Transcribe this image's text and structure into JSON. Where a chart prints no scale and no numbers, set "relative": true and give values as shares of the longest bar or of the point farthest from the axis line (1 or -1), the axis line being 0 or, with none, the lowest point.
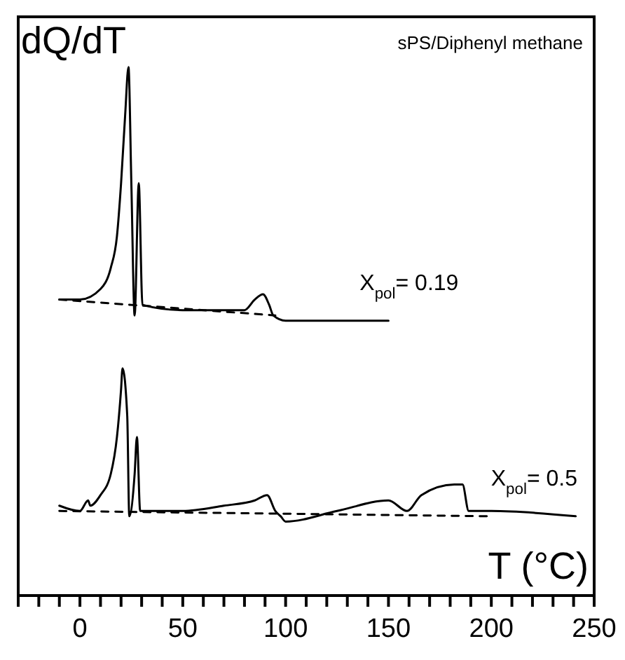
{
  "chart_data": {
    "type": "line",
    "relative": true,
    "ylabel": "dQ/dT",
    "xlabel": "T (°C)",
    "annotations": [
      "sPS/Diphenyl methane"
    ],
    "xlim": [
      -30,
      250
    ],
    "xticks": [
      {
        "value": -30,
        "label": null
      },
      {
        "value": -20,
        "label": null
      },
      {
        "value": -10,
        "label": null
      },
      0,
      {
        "value": 10,
        "label": null
      },
      {
        "value": 20,
        "label": null
      },
      {
        "value": 30,
        "label": null
      },
      {
        "value": 40,
        "label": null
      },
      50,
      {
        "value": 60,
        "label": null
      },
      {
        "value": 70,
        "label": null
      },
      {
        "value": 80,
        "label": null
      },
      {
        "value": 90,
        "label": null
      },
      100,
      {
        "value": 110,
        "label": null
      },
      {
        "value": 120,
        "label": null
      },
      {
        "value": 130,
        "label": null
      },
      {
        "value": 140,
        "label": null
      },
      150,
      {
        "value": 160,
        "label": null
      },
      {
        "value": 170,
        "label": null
      },
      {
        "value": 180,
        "label": null
      },
      {
        "value": 190,
        "label": null
      },
      200,
      {
        "value": 210,
        "label": null
      },
      {
        "value": 220,
        "label": null
      },
      {
        "value": 230,
        "label": null
      },
      {
        "value": 240,
        "label": null
      },
      250
    ],
    "marker": "none",
    "series": [
      {
        "name": "X$_{pol}$= 0.19",
        "color": "#000000",
        "line_style": "solid",
        "x": [
          -10,
          0,
          10,
          15,
          18,
          20,
          22,
          23.6,
          25,
          26.6,
          28.6,
          30.4,
          50,
          75,
          80,
          85,
          89,
          92,
          94,
          100,
          125,
          150
        ],
        "values": [
          0.56,
          0.56,
          0.58,
          0.62,
          0.68,
          0.78,
          0.91,
          1,
          0.78,
          0.53,
          0.78,
          0.55,
          0.54,
          0.54,
          0.54,
          0.56,
          0.57,
          0.55,
          0.53,
          0.52,
          0.52,
          0.52
        ]
      },
      {
        "color": "#000000",
        "line_style": "dashed",
        "x": [
          -10,
          95
        ],
        "values": [
          0.56,
          0.53
        ]
      },
      {
        "name": "X$_{pol}$= 0.5",
        "color": "#000000",
        "line_style": "solid",
        "x": [
          -10,
          0,
          4,
          5,
          10,
          15,
          18,
          20,
          20.7,
          23,
          24,
          26.6,
          27.7,
          29.3,
          30,
          50,
          70,
          85,
          91,
          95,
          97.6,
          100,
          125,
          150,
          159,
          166,
          182,
          186,
          189,
          200,
          241
        ],
        "values": [
          0.17,
          0.16,
          0.18,
          0.17,
          0.19,
          0.23,
          0.3,
          0.39,
          0.43,
          0.34,
          0.15,
          0.23,
          0.3,
          0.16,
          0.16,
          0.16,
          0.17,
          0.18,
          0.19,
          0.16,
          0.15,
          0.14,
          0.16,
          0.18,
          0.16,
          0.19,
          0.21,
          0.21,
          0.16,
          0.16,
          0.15
        ]
      },
      {
        "color": "#000000",
        "line_style": "dashed",
        "x": [
          -10,
          200
        ],
        "values": [
          0.16,
          0.15
        ]
      }
    ]
  }
}
